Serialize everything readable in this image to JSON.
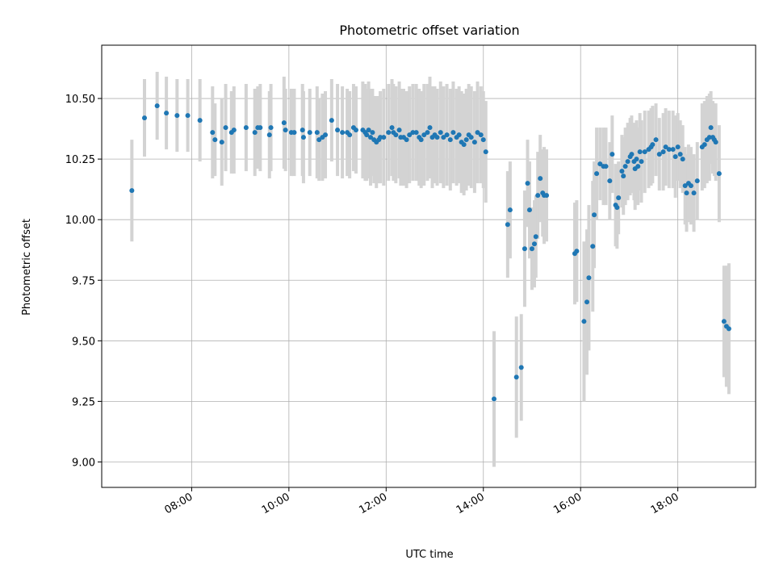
{
  "chart_data": {
    "type": "scatter",
    "title": "Photometric offset variation",
    "xlabel": "UTC time",
    "ylabel": "Photometric offset",
    "x_unit": "UTC hours",
    "xlim": [
      6.15,
      19.6
    ],
    "ylim": [
      8.895,
      10.72
    ],
    "x_ticks": [
      {
        "value": 8,
        "label": "08:00"
      },
      {
        "value": 10,
        "label": "10:00"
      },
      {
        "value": 12,
        "label": "12:00"
      },
      {
        "value": 14,
        "label": "14:00"
      },
      {
        "value": 16,
        "label": "16:00"
      },
      {
        "value": 18,
        "label": "18:00"
      }
    ],
    "y_ticks": [
      {
        "value": 9.0,
        "label": "9.00"
      },
      {
        "value": 9.25,
        "label": "9.25"
      },
      {
        "value": 9.5,
        "label": "9.50"
      },
      {
        "value": 9.75,
        "label": "9.75"
      },
      {
        "value": 10.0,
        "label": "10.00"
      },
      {
        "value": 10.25,
        "label": "10.25"
      },
      {
        "value": 10.5,
        "label": "10.50"
      }
    ],
    "grid": true,
    "colors": {
      "point": "#1f77b4",
      "errorbar": "#d3d3d3",
      "grid": "#b0b0b0"
    },
    "series": [
      {
        "x": [
          6.77,
          7.03,
          7.29,
          7.48,
          7.7,
          7.92,
          8.17,
          8.43,
          8.48,
          8.62,
          8.7,
          8.82,
          8.87,
          9.12,
          9.3,
          9.36,
          9.41,
          9.6,
          9.63,
          9.9,
          9.93,
          10.05,
          10.11,
          10.28,
          10.3,
          10.43,
          10.58,
          10.62,
          10.69,
          10.75,
          10.88,
          11.0,
          11.1,
          11.2,
          11.25,
          11.33,
          11.38,
          11.52,
          11.57,
          11.6,
          11.64,
          11.68,
          11.72,
          11.75,
          11.8,
          11.85,
          11.88,
          11.95,
          12.05,
          12.12,
          12.15,
          12.2,
          12.27,
          12.3,
          12.36,
          12.42,
          12.48,
          12.55,
          12.62,
          12.68,
          12.72,
          12.78,
          12.85,
          12.9,
          12.95,
          13.0,
          13.05,
          13.12,
          13.18,
          13.25,
          13.32,
          13.38,
          13.45,
          13.5,
          13.55,
          13.6,
          13.65,
          13.7,
          13.75,
          13.82,
          13.88,
          13.95,
          14.0,
          14.05,
          14.22,
          14.5,
          14.55,
          14.68,
          14.78,
          14.85,
          14.91,
          14.95,
          15.0,
          15.05,
          15.08,
          15.12,
          15.17,
          15.22,
          15.25,
          15.3,
          15.88,
          15.92,
          16.07,
          16.13,
          16.17,
          16.25,
          16.28,
          16.33,
          16.4,
          16.47,
          16.52,
          16.6,
          16.65,
          16.72,
          16.75,
          16.78,
          16.85,
          16.88,
          16.92,
          16.97,
          17.02,
          17.05,
          17.1,
          17.12,
          17.15,
          17.18,
          17.22,
          17.25,
          17.32,
          17.4,
          17.45,
          17.48,
          17.55,
          17.62,
          17.7,
          17.75,
          17.82,
          17.9,
          17.95,
          18.0,
          18.05,
          18.1,
          18.15,
          18.18,
          18.22,
          18.27,
          18.33,
          18.4,
          18.5,
          18.55,
          18.6,
          18.65,
          18.68,
          18.72,
          18.75,
          18.78,
          18.85,
          18.95,
          19.0,
          19.05
        ],
        "y": [
          10.12,
          10.42,
          10.47,
          10.44,
          10.43,
          10.43,
          10.41,
          10.36,
          10.33,
          10.32,
          10.38,
          10.36,
          10.37,
          10.38,
          10.36,
          10.38,
          10.38,
          10.35,
          10.38,
          10.4,
          10.37,
          10.36,
          10.36,
          10.37,
          10.34,
          10.36,
          10.36,
          10.33,
          10.34,
          10.35,
          10.41,
          10.37,
          10.36,
          10.36,
          10.35,
          10.38,
          10.37,
          10.37,
          10.36,
          10.35,
          10.37,
          10.34,
          10.36,
          10.33,
          10.32,
          10.33,
          10.34,
          10.34,
          10.36,
          10.38,
          10.36,
          10.35,
          10.37,
          10.34,
          10.34,
          10.33,
          10.35,
          10.36,
          10.36,
          10.34,
          10.33,
          10.35,
          10.36,
          10.38,
          10.34,
          10.35,
          10.34,
          10.36,
          10.34,
          10.35,
          10.33,
          10.36,
          10.34,
          10.35,
          10.32,
          10.31,
          10.33,
          10.35,
          10.34,
          10.32,
          10.36,
          10.35,
          10.33,
          10.28,
          9.26,
          9.98,
          10.04,
          9.35,
          9.39,
          9.88,
          10.15,
          10.04,
          9.88,
          9.9,
          9.93,
          10.1,
          10.17,
          10.11,
          10.1,
          10.1,
          9.86,
          9.87,
          9.58,
          9.66,
          9.76,
          9.89,
          10.02,
          10.19,
          10.23,
          10.22,
          10.22,
          10.16,
          10.27,
          10.06,
          10.05,
          10.09,
          10.2,
          10.18,
          10.22,
          10.24,
          10.26,
          10.27,
          10.24,
          10.21,
          10.25,
          10.22,
          10.28,
          10.24,
          10.28,
          10.29,
          10.3,
          10.31,
          10.33,
          10.27,
          10.28,
          10.3,
          10.29,
          10.29,
          10.26,
          10.3,
          10.27,
          10.25,
          10.14,
          10.11,
          10.15,
          10.14,
          10.11,
          10.16,
          10.3,
          10.31,
          10.33,
          10.34,
          10.38,
          10.34,
          10.33,
          10.32,
          10.19,
          9.58,
          9.56,
          9.55
        ],
        "yerr": [
          0.21,
          0.16,
          0.14,
          0.15,
          0.15,
          0.15,
          0.17,
          0.19,
          0.15,
          0.18,
          0.18,
          0.17,
          0.18,
          0.18,
          0.18,
          0.17,
          0.18,
          0.18,
          0.18,
          0.19,
          0.17,
          0.18,
          0.18,
          0.19,
          0.19,
          0.18,
          0.19,
          0.17,
          0.18,
          0.18,
          0.17,
          0.19,
          0.19,
          0.18,
          0.18,
          0.18,
          0.18,
          0.2,
          0.2,
          0.19,
          0.2,
          0.2,
          0.18,
          0.18,
          0.19,
          0.18,
          0.19,
          0.2,
          0.2,
          0.2,
          0.2,
          0.2,
          0.2,
          0.2,
          0.2,
          0.2,
          0.2,
          0.2,
          0.2,
          0.2,
          0.2,
          0.21,
          0.2,
          0.21,
          0.21,
          0.2,
          0.2,
          0.21,
          0.21,
          0.21,
          0.21,
          0.21,
          0.2,
          0.2,
          0.21,
          0.21,
          0.21,
          0.21,
          0.21,
          0.21,
          0.21,
          0.2,
          0.2,
          0.21,
          0.28,
          0.22,
          0.2,
          0.25,
          0.22,
          0.24,
          0.18,
          0.2,
          0.17,
          0.18,
          0.17,
          0.18,
          0.18,
          0.18,
          0.2,
          0.19,
          0.21,
          0.21,
          0.33,
          0.3,
          0.3,
          0.27,
          0.22,
          0.19,
          0.15,
          0.16,
          0.16,
          0.16,
          0.16,
          0.17,
          0.17,
          0.15,
          0.15,
          0.16,
          0.16,
          0.16,
          0.16,
          0.16,
          0.16,
          0.17,
          0.16,
          0.16,
          0.16,
          0.17,
          0.17,
          0.16,
          0.16,
          0.16,
          0.15,
          0.15,
          0.16,
          0.16,
          0.16,
          0.16,
          0.17,
          0.14,
          0.14,
          0.14,
          0.16,
          0.16,
          0.16,
          0.16,
          0.16,
          0.16,
          0.18,
          0.18,
          0.18,
          0.18,
          0.15,
          0.15,
          0.15,
          0.16,
          0.2,
          0.23,
          0.25,
          0.27
        ]
      }
    ]
  }
}
